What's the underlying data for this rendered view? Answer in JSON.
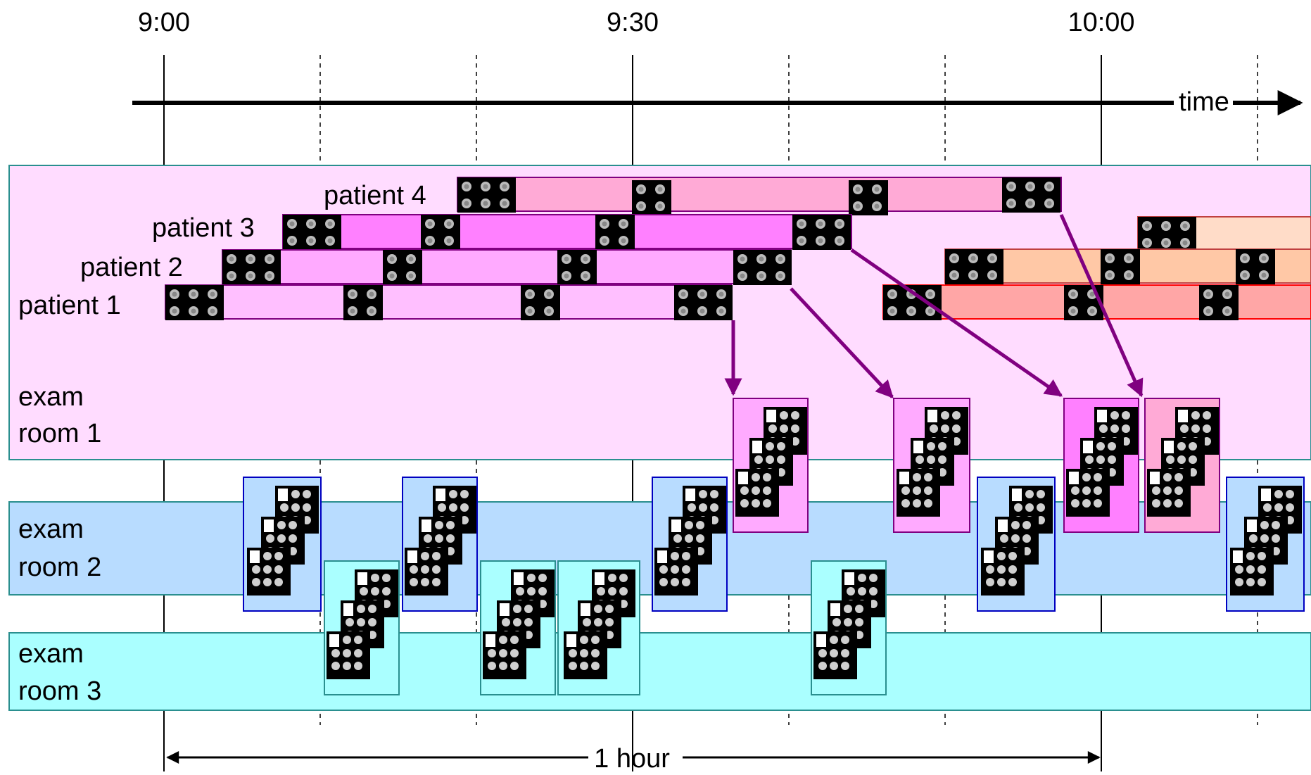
{
  "time_labels": [
    "9:00",
    "9:30",
    "10:00"
  ],
  "axis_label": "time",
  "duration_label": "1 hour",
  "rooms": [
    {
      "line1": "exam",
      "line2": "room 1",
      "color": "#ffdcff",
      "border": "#2a8f8f"
    },
    {
      "line1": "exam",
      "line2": "room 2",
      "color": "#b8dcff",
      "border": "#2a8f8f"
    },
    {
      "line1": "exam",
      "line2": "room 3",
      "color": "#aaffff",
      "border": "#2a8f8f"
    }
  ],
  "patients": [
    {
      "label": "patient 1"
    },
    {
      "label": "patient 2"
    },
    {
      "label": "patient 3"
    },
    {
      "label": "patient 4"
    }
  ],
  "colors": {
    "arrow": "#800080",
    "timeline": "#000000",
    "scan_icon": "#000000",
    "next_patients": [
      "#ffa6a6",
      "#ffc8a6",
      "#ffdcc8"
    ]
  }
}
